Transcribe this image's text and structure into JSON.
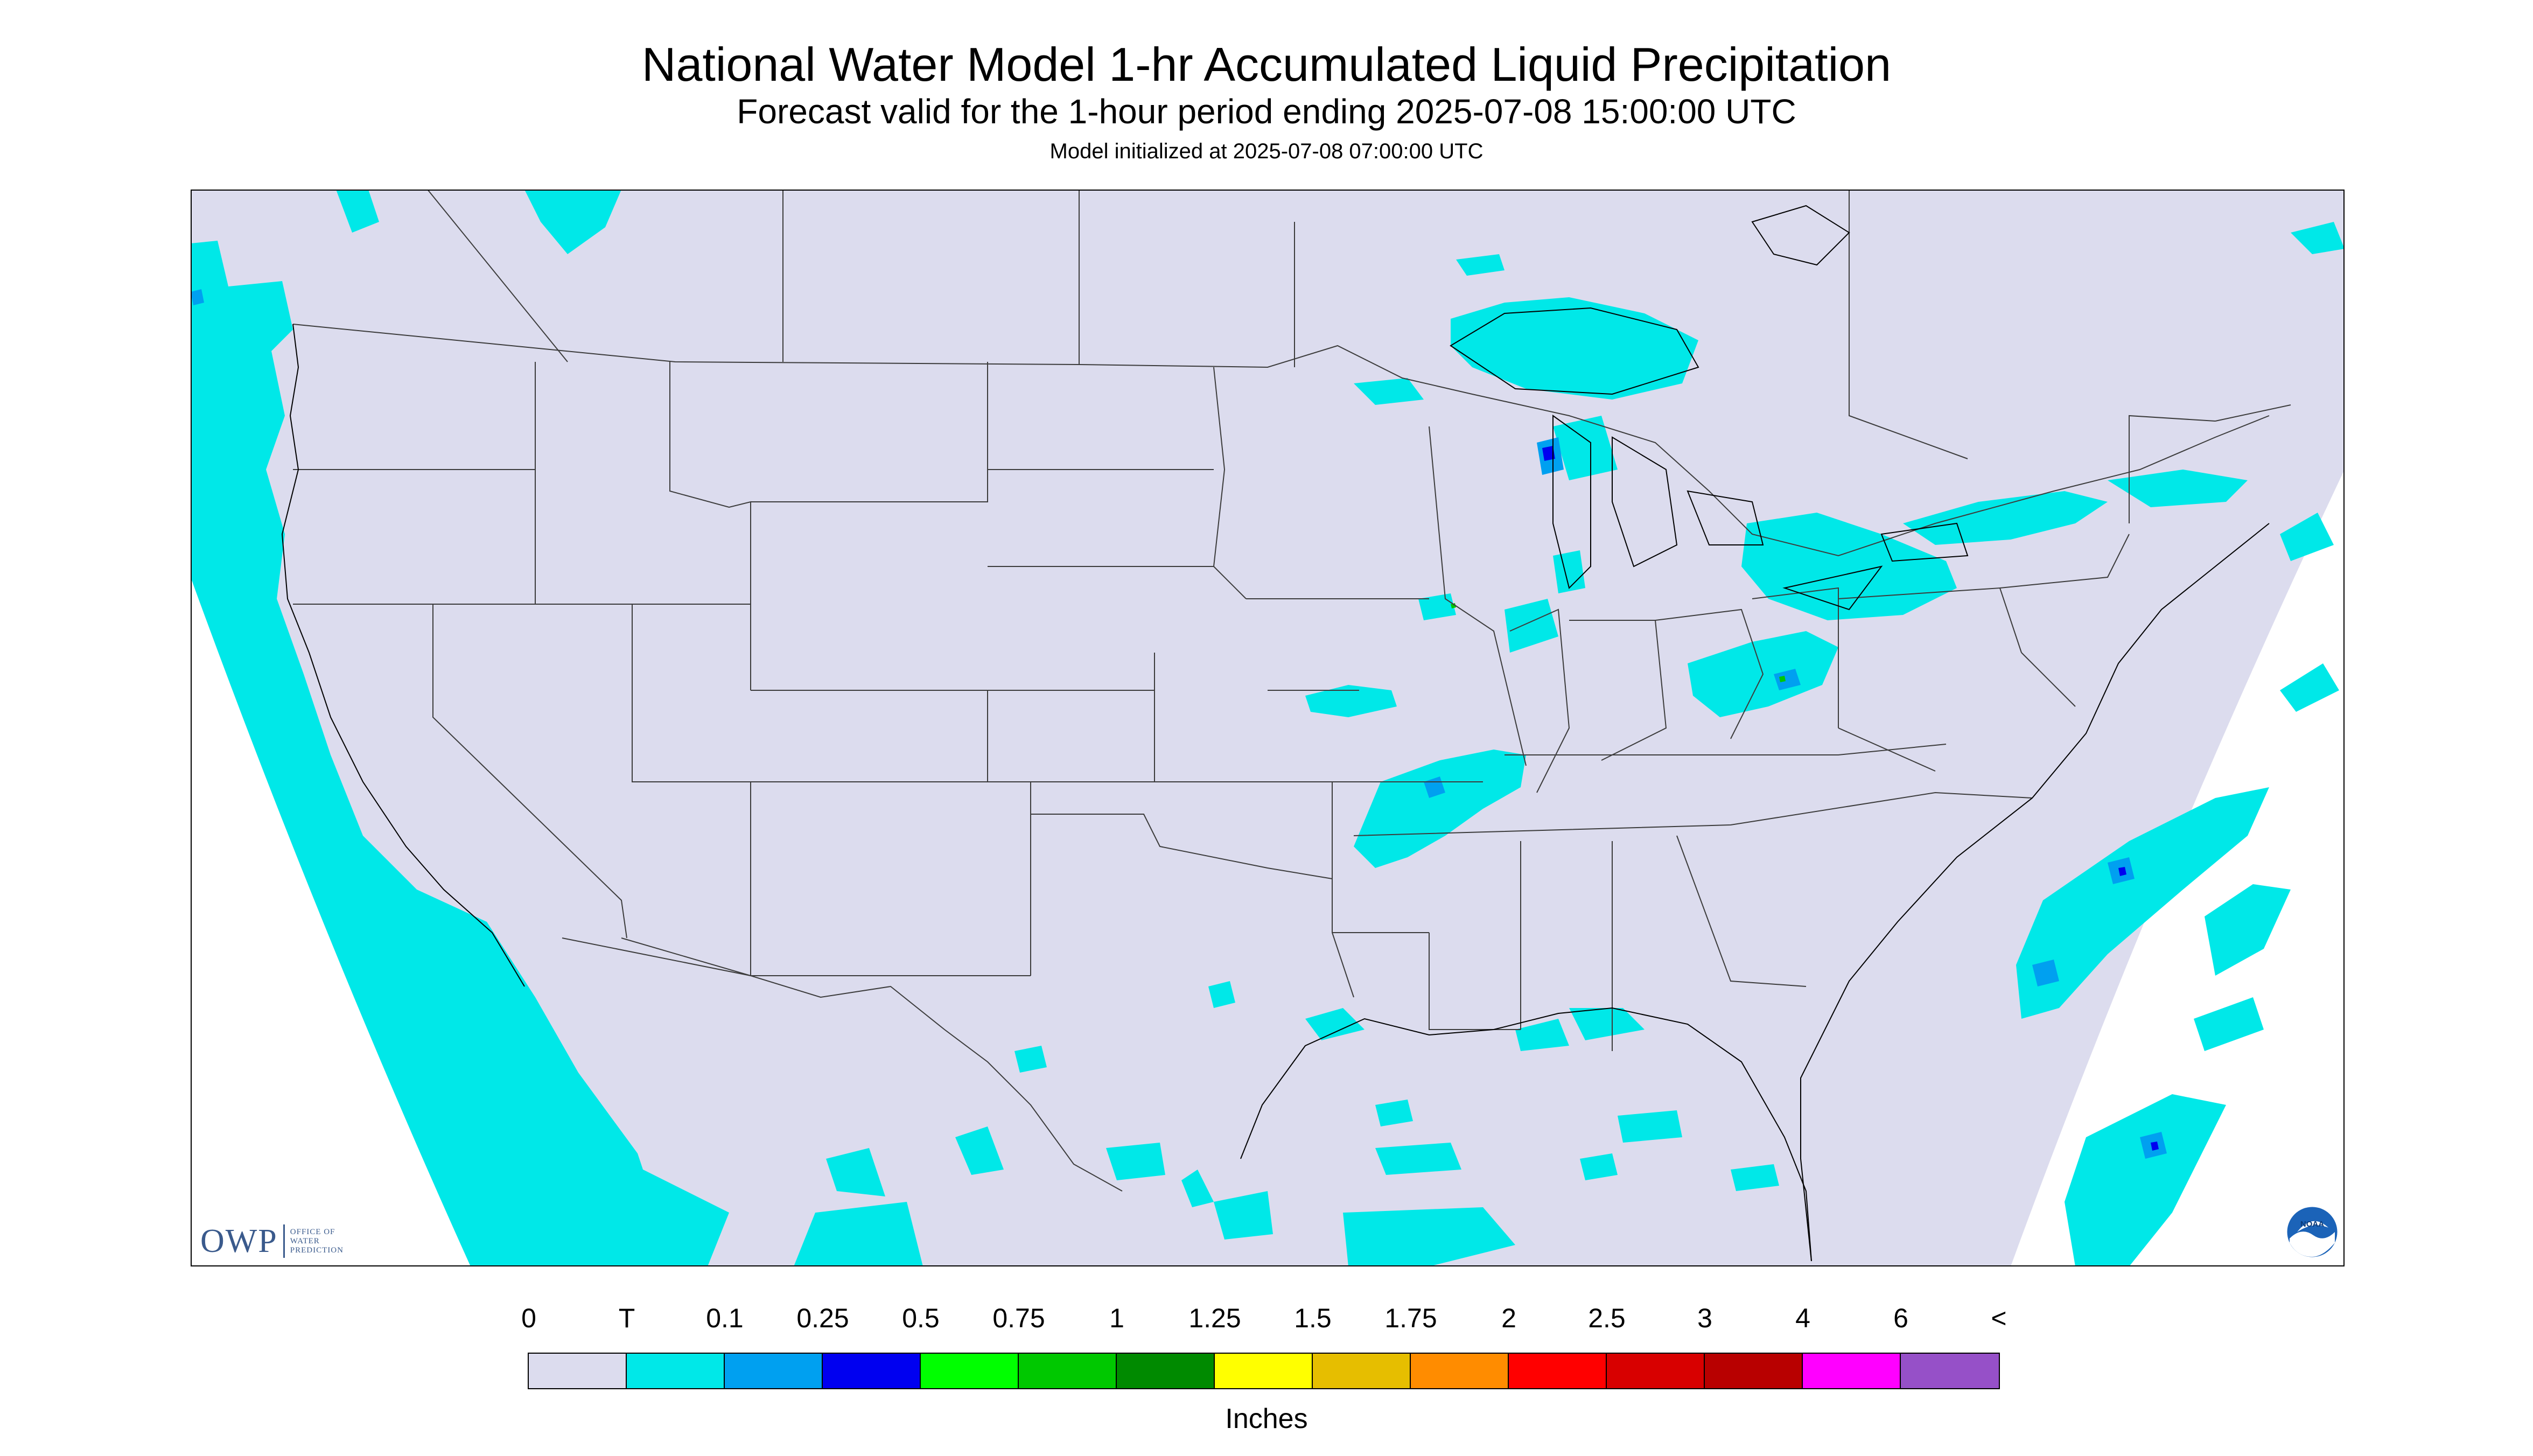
{
  "title": "National Water Model 1-hr Accumulated Liquid Precipitation",
  "subtitle": "Forecast valid for the 1-hour period ending 2025-07-08 15:00:00 UTC",
  "init": "Model initialized at 2025-07-08 07:00:00 UTC",
  "logos": {
    "owp_mark": "OWP",
    "owp_text": [
      "OFFICE OF",
      "WATER",
      "PREDICTION"
    ],
    "noaa": "NOAA"
  },
  "legend": {
    "units": "Inches",
    "labels": [
      "0",
      "T",
      "0.1",
      "0.25",
      "0.5",
      "0.75",
      "1",
      "1.25",
      "1.5",
      "1.75",
      "2",
      "2.5",
      "3",
      "4",
      "6",
      "<"
    ],
    "colors": [
      "#dcdcee",
      "#00e8e8",
      "#00a0f0",
      "#0000f0",
      "#00ff00",
      "#00c800",
      "#008a00",
      "#ffff00",
      "#e6be00",
      "#ff8c00",
      "#ff0000",
      "#d80000",
      "#b80000",
      "#ff00ff",
      "#9650c8"
    ]
  },
  "map_colors": {
    "background": "#dcdcee",
    "no_data": "#ffffff",
    "trace": "#00e8e8",
    "light": "#00a0f0",
    "moderate": "#0000f0",
    "green": "#00c800",
    "borders": "#3c3c3c"
  }
}
